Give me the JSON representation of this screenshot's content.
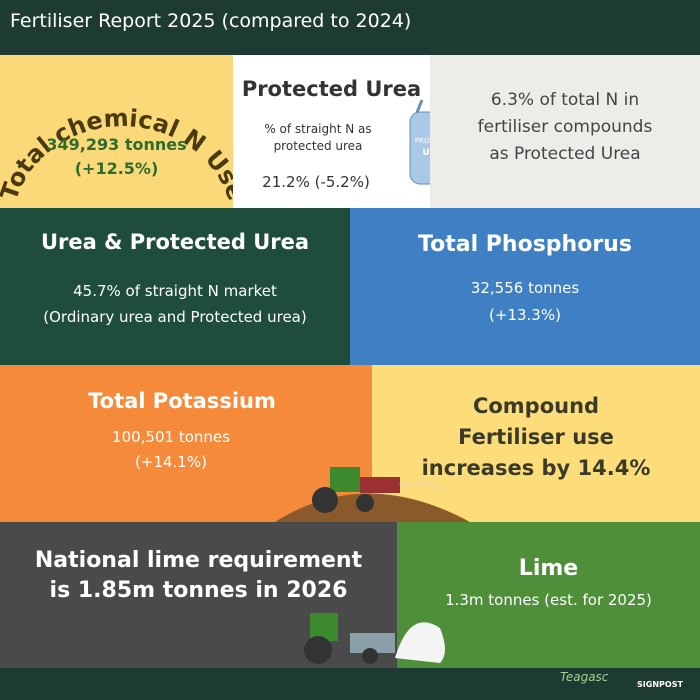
{
  "header": {
    "title": "Fertiliser Report 2025 (compared to 2024)"
  },
  "panels": [
    {
      "title": "Total chemical N Use",
      "lines": [
        "349,293 tonnes",
        "(+12.5%)"
      ]
    },
    {
      "title": "Protected Urea",
      "lines": [
        "% of straight N as",
        "protected urea"
      ],
      "value": "21.2% (-5.2%)",
      "bag_label": [
        "PROTECTED",
        "UREA"
      ]
    },
    {
      "lines": [
        "6.3% of total N in",
        "fertiliser compounds",
        "as Protected Urea"
      ]
    },
    {
      "title": "Urea & Protected Urea",
      "lines": [
        "45.7% of straight N market",
        "(Ordinary urea and Protected urea)"
      ]
    },
    {
      "title": "Total Phosphorus",
      "lines": [
        "32,556 tonnes",
        "(+13.3%)"
      ]
    },
    {
      "title": "Total Potassium",
      "lines": [
        "100,501 tonnes",
        "(+14.1%)"
      ]
    },
    {
      "lines": [
        "Compound",
        "Fertiliser use",
        "increases by 14.4%"
      ]
    },
    {
      "lines": [
        "National lime requirement",
        "is 1.85m tonnes in 2026"
      ]
    },
    {
      "title": "Lime",
      "lines": [
        "1.3m tonnes (est. for 2025)"
      ]
    }
  ],
  "footer": {
    "logos": [
      "Teagasc",
      "SIGNPOST"
    ]
  }
}
